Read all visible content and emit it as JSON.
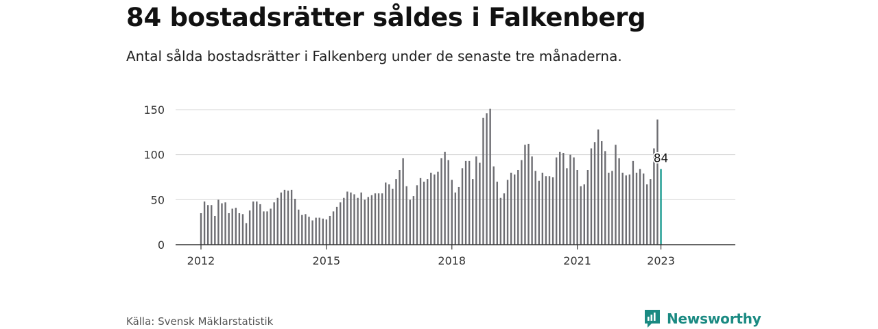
{
  "header": {
    "title": "84 bostadsrätter såldes i Falkenberg",
    "subtitle": "Antal sålda bostadsrätter i Falkenberg under de senaste tre månaderna."
  },
  "footer": {
    "source": "Källa: Svensk Mäklarstatistik",
    "brand": "Newsworthy"
  },
  "colors": {
    "bar": "#6d6d72",
    "highlight": "#1a9a8f",
    "grid": "#d4d4d4",
    "axis": "#333333",
    "brand": "#1a8a82"
  },
  "icons": {
    "brand_logo": "newsworthy-logo-icon"
  },
  "chart_data": {
    "type": "bar",
    "title": "84 bostadsrätter såldes i Falkenberg",
    "xlabel": "",
    "ylabel": "",
    "ylim": [
      0,
      150
    ],
    "yticks": [
      0,
      50,
      100,
      150
    ],
    "xticks": [
      {
        "label": "2012",
        "x": "2012-01"
      },
      {
        "label": "2015",
        "x": "2015-01"
      },
      {
        "label": "2018",
        "x": "2018-01"
      },
      {
        "label": "2021",
        "x": "2021-01"
      },
      {
        "label": "2023",
        "x": "2023-01"
      }
    ],
    "grid": true,
    "legend": "none",
    "highlight": {
      "x": "2023-01",
      "value": 84,
      "label": "84"
    },
    "x": [
      "2012-01",
      "2012-02",
      "2012-03",
      "2012-04",
      "2012-05",
      "2012-06",
      "2012-07",
      "2012-08",
      "2012-09",
      "2012-10",
      "2012-11",
      "2012-12",
      "2013-01",
      "2013-02",
      "2013-03",
      "2013-04",
      "2013-05",
      "2013-06",
      "2013-07",
      "2013-08",
      "2013-09",
      "2013-10",
      "2013-11",
      "2013-12",
      "2014-01",
      "2014-02",
      "2014-03",
      "2014-04",
      "2014-05",
      "2014-06",
      "2014-07",
      "2014-08",
      "2014-09",
      "2014-10",
      "2014-11",
      "2014-12",
      "2015-01",
      "2015-02",
      "2015-03",
      "2015-04",
      "2015-05",
      "2015-06",
      "2015-07",
      "2015-08",
      "2015-09",
      "2015-10",
      "2015-11",
      "2015-12",
      "2016-01",
      "2016-02",
      "2016-03",
      "2016-04",
      "2016-05",
      "2016-06",
      "2016-07",
      "2016-08",
      "2016-09",
      "2016-10",
      "2016-11",
      "2016-12",
      "2017-01",
      "2017-02",
      "2017-03",
      "2017-04",
      "2017-05",
      "2017-06",
      "2017-07",
      "2017-08",
      "2017-09",
      "2017-10",
      "2017-11",
      "2017-12",
      "2018-01",
      "2018-02",
      "2018-03",
      "2018-04",
      "2018-05",
      "2018-06",
      "2018-07",
      "2018-08",
      "2018-09",
      "2018-10",
      "2018-11",
      "2018-12",
      "2019-01",
      "2019-02",
      "2019-03",
      "2019-04",
      "2019-05",
      "2019-06",
      "2019-07",
      "2019-08",
      "2019-09",
      "2019-10",
      "2019-11",
      "2019-12",
      "2020-01",
      "2020-02",
      "2020-03",
      "2020-04",
      "2020-05",
      "2020-06",
      "2020-07",
      "2020-08",
      "2020-09",
      "2020-10",
      "2020-11",
      "2020-12",
      "2021-01",
      "2021-02",
      "2021-03",
      "2021-04",
      "2021-05",
      "2021-06",
      "2021-07",
      "2021-08",
      "2021-09",
      "2021-10",
      "2021-11",
      "2021-12",
      "2022-01",
      "2022-02",
      "2022-03",
      "2022-04",
      "2022-05",
      "2022-06",
      "2022-07",
      "2022-08",
      "2022-09",
      "2022-10",
      "2022-11",
      "2022-12",
      "2023-01"
    ],
    "values": [
      35,
      48,
      44,
      44,
      32,
      50,
      46,
      47,
      35,
      40,
      41,
      35,
      34,
      24,
      38,
      48,
      48,
      45,
      37,
      37,
      40,
      47,
      52,
      58,
      61,
      60,
      61,
      51,
      39,
      33,
      34,
      31,
      27,
      30,
      30,
      29,
      28,
      32,
      37,
      42,
      47,
      52,
      59,
      58,
      56,
      52,
      58,
      50,
      53,
      55,
      57,
      57,
      57,
      69,
      67,
      62,
      73,
      83,
      96,
      65,
      50,
      54,
      66,
      74,
      70,
      73,
      80,
      78,
      81,
      96,
      103,
      94,
      72,
      58,
      64,
      85,
      93,
      93,
      73,
      98,
      91,
      141,
      146,
      151,
      87,
      70,
      52,
      57,
      72,
      80,
      78,
      83,
      94,
      111,
      112,
      98,
      82,
      71,
      80,
      76,
      76,
      75,
      97,
      103,
      102,
      85,
      100,
      97,
      83,
      65,
      67,
      83,
      107,
      114,
      128,
      115,
      104,
      80,
      82,
      111,
      96,
      80,
      77,
      78,
      93,
      80,
      84,
      79,
      67,
      73,
      107,
      139,
      84
    ]
  }
}
